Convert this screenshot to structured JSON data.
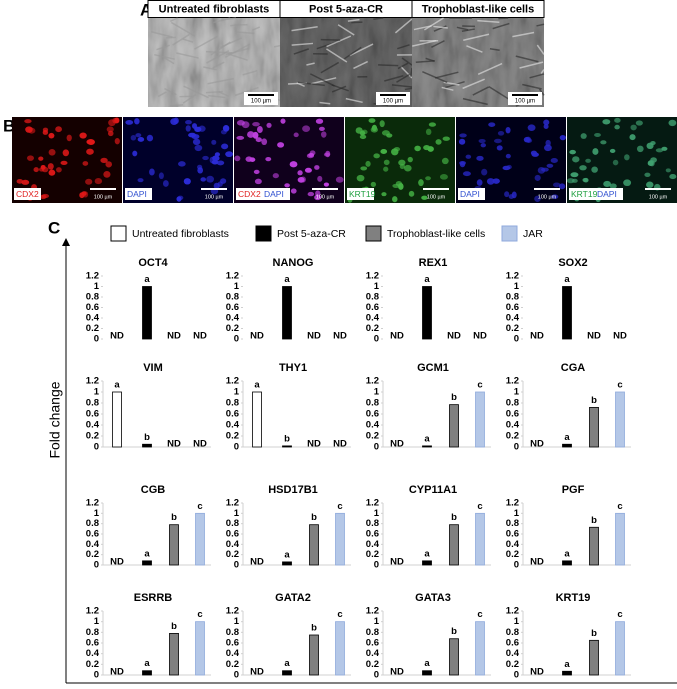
{
  "panel_a": {
    "label": "A",
    "columns": [
      "Untreated fibroblasts",
      "Post 5-aza-CR",
      "Trophoblast-like cells"
    ],
    "scale_bar": "100 µm"
  },
  "panel_b": {
    "label": "B",
    "stains": [
      [
        "CDX2"
      ],
      [
        "DAPI"
      ],
      [
        "CDX2",
        "DAPI"
      ],
      [
        "KRT19"
      ],
      [
        "DAPI"
      ],
      [
        "KRT19",
        "DAPI"
      ]
    ],
    "scale_bar": "100 µm"
  },
  "panel_c": {
    "label": "C",
    "y_label": "Fold change",
    "legend": [
      {
        "name": "Untreated fibroblasts",
        "color": "#ffffff"
      },
      {
        "name": "Post 5-aza-CR",
        "color": "#000000"
      },
      {
        "name": "Trophoblast-like cells",
        "color": "#808080"
      },
      {
        "name": "JAR",
        "color": "#b4c7e7"
      }
    ]
  },
  "chart_data": [
    {
      "type": "bar",
      "title": "OCT4",
      "values": [
        null,
        1,
        null,
        null
      ],
      "value_labels": [
        "ND",
        null,
        "ND",
        "ND"
      ],
      "letters": [
        null,
        "a",
        null,
        null
      ],
      "ylim": [
        0,
        1.2
      ],
      "yticks": [
        0,
        0.2,
        0.4,
        0.6,
        0.8,
        1,
        1.2
      ]
    },
    {
      "type": "bar",
      "title": "NANOG",
      "values": [
        null,
        1,
        null,
        null
      ],
      "value_labels": [
        "ND",
        null,
        "ND",
        "ND"
      ],
      "letters": [
        null,
        "a",
        null,
        null
      ],
      "ylim": [
        0,
        1.2
      ],
      "yticks": [
        0,
        0.2,
        0.4,
        0.6,
        0.8,
        1,
        1.2
      ]
    },
    {
      "type": "bar",
      "title": "REX1",
      "values": [
        null,
        1,
        null,
        null
      ],
      "value_labels": [
        "ND",
        null,
        "ND",
        "ND"
      ],
      "letters": [
        null,
        "a",
        null,
        null
      ],
      "ylim": [
        0,
        1.2
      ],
      "yticks": [
        0,
        0.2,
        0.4,
        0.6,
        0.8,
        1,
        1.2
      ]
    },
    {
      "type": "bar",
      "title": "SOX2",
      "values": [
        null,
        1,
        null,
        null
      ],
      "value_labels": [
        "ND",
        null,
        "ND",
        "ND"
      ],
      "letters": [
        null,
        "a",
        null,
        null
      ],
      "ylim": [
        0,
        1.2
      ],
      "yticks": [
        0,
        0.2,
        0.4,
        0.6,
        0.8,
        1,
        1.2
      ]
    },
    {
      "type": "bar",
      "title": "VIM",
      "values": [
        1,
        0.05,
        null,
        null
      ],
      "value_labels": [
        null,
        null,
        "ND",
        "ND"
      ],
      "letters": [
        "a",
        "b",
        null,
        null
      ],
      "ylim": [
        0,
        1.2
      ],
      "yticks": [
        0,
        0.2,
        0.4,
        0.6,
        0.8,
        1,
        1.2
      ]
    },
    {
      "type": "bar",
      "title": "THY1",
      "values": [
        1,
        0.02,
        null,
        null
      ],
      "value_labels": [
        null,
        null,
        "ND",
        "ND"
      ],
      "letters": [
        "a",
        "b",
        null,
        null
      ],
      "ylim": [
        0,
        1.2
      ],
      "yticks": [
        0,
        0.2,
        0.4,
        0.6,
        0.8,
        1,
        1.2
      ]
    },
    {
      "type": "bar",
      "title": "GCM1",
      "values": [
        null,
        0.02,
        0.77,
        1
      ],
      "value_labels": [
        "ND",
        null,
        null,
        null
      ],
      "letters": [
        null,
        "a",
        "b",
        "c"
      ],
      "ylim": [
        0,
        1.2
      ],
      "yticks": [
        0,
        0.2,
        0.4,
        0.6,
        0.8,
        1,
        1.2
      ]
    },
    {
      "type": "bar",
      "title": "CGA",
      "values": [
        null,
        0.05,
        0.72,
        1
      ],
      "value_labels": [
        "ND",
        null,
        null,
        null
      ],
      "letters": [
        null,
        "a",
        "b",
        "c"
      ],
      "ylim": [
        0,
        1.2
      ],
      "yticks": [
        0,
        0.2,
        0.4,
        0.6,
        0.8,
        1,
        1.2
      ]
    },
    {
      "type": "bar",
      "title": "CGB",
      "values": [
        null,
        0.08,
        0.78,
        1
      ],
      "value_labels": [
        "ND",
        null,
        null,
        null
      ],
      "letters": [
        null,
        "a",
        "b",
        "c"
      ],
      "ylim": [
        0,
        1.2
      ],
      "yticks": [
        0,
        0.2,
        0.4,
        0.6,
        0.8,
        1,
        1.2
      ]
    },
    {
      "type": "bar",
      "title": "HSD17B1",
      "values": [
        null,
        0.06,
        0.78,
        1
      ],
      "value_labels": [
        "ND",
        null,
        null,
        null
      ],
      "letters": [
        null,
        "a",
        "b",
        "c"
      ],
      "ylim": [
        0,
        1.2
      ],
      "yticks": [
        0,
        0.2,
        0.4,
        0.6,
        0.8,
        1,
        1.2
      ]
    },
    {
      "type": "bar",
      "title": "CYP11A1",
      "values": [
        null,
        0.08,
        0.78,
        1
      ],
      "value_labels": [
        "ND",
        null,
        null,
        null
      ],
      "letters": [
        null,
        "a",
        "b",
        "c"
      ],
      "ylim": [
        0,
        1.2
      ],
      "yticks": [
        0,
        0.2,
        0.4,
        0.6,
        0.8,
        1,
        1.2
      ]
    },
    {
      "type": "bar",
      "title": "PGF",
      "values": [
        null,
        0.08,
        0.73,
        1
      ],
      "value_labels": [
        "ND",
        null,
        null,
        null
      ],
      "letters": [
        null,
        "a",
        "b",
        "c"
      ],
      "ylim": [
        0,
        1.2
      ],
      "yticks": [
        0,
        0.2,
        0.4,
        0.6,
        0.8,
        1,
        1.2
      ]
    },
    {
      "type": "bar",
      "title": "ESRRB",
      "values": [
        null,
        0.08,
        0.78,
        1
      ],
      "value_labels": [
        "ND",
        null,
        null,
        null
      ],
      "letters": [
        null,
        "a",
        "b",
        "c"
      ],
      "ylim": [
        0,
        1.2
      ],
      "yticks": [
        0,
        0.2,
        0.4,
        0.6,
        0.8,
        1,
        1.2
      ]
    },
    {
      "type": "bar",
      "title": "GATA2",
      "values": [
        null,
        0.08,
        0.75,
        1
      ],
      "value_labels": [
        "ND",
        null,
        null,
        null
      ],
      "letters": [
        null,
        "a",
        "b",
        "c"
      ],
      "ylim": [
        0,
        1.2
      ],
      "yticks": [
        0,
        0.2,
        0.4,
        0.6,
        0.8,
        1,
        1.2
      ]
    },
    {
      "type": "bar",
      "title": "GATA3",
      "values": [
        null,
        0.08,
        0.68,
        1
      ],
      "value_labels": [
        "ND",
        null,
        null,
        null
      ],
      "letters": [
        null,
        "a",
        "b",
        "c"
      ],
      "ylim": [
        0,
        1.2
      ],
      "yticks": [
        0,
        0.2,
        0.4,
        0.6,
        0.8,
        1,
        1.2
      ]
    },
    {
      "type": "bar",
      "title": "KRT19",
      "values": [
        null,
        0.07,
        0.65,
        1
      ],
      "value_labels": [
        "ND",
        null,
        null,
        null
      ],
      "letters": [
        null,
        "a",
        "b",
        "c"
      ],
      "ylim": [
        0,
        1.2
      ],
      "yticks": [
        0,
        0.2,
        0.4,
        0.6,
        0.8,
        1,
        1.2
      ]
    }
  ]
}
